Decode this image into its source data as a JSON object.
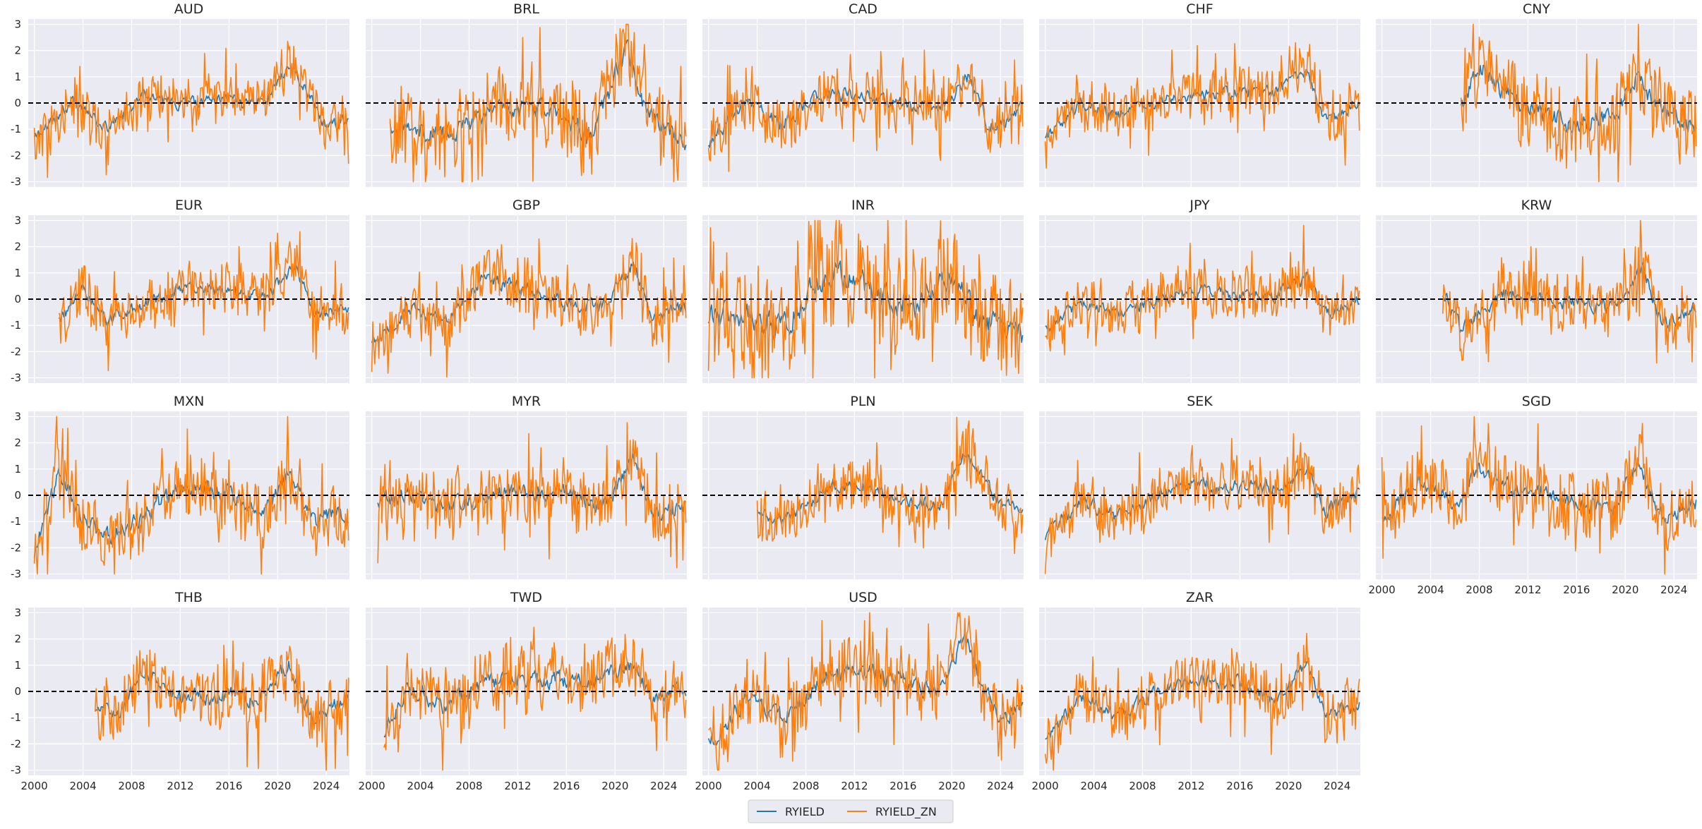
{
  "chart_data": {
    "type": "line",
    "grid": true,
    "layout": "4x5 facets",
    "xlim": [
      1999.5,
      2025.9
    ],
    "ylim": [
      -3.2,
      3.2
    ],
    "x_ticks": [
      2000,
      2004,
      2008,
      2012,
      2016,
      2020,
      2024
    ],
    "x_tick_labels": [
      "2000",
      "2004",
      "2008",
      "2012",
      "2016",
      "2020",
      "2024"
    ],
    "y_ticks": [
      -3,
      -2,
      -1,
      0,
      1,
      2,
      3
    ],
    "y_tick_labels": [
      "-3",
      "-2",
      "-1",
      "0",
      "1",
      "2",
      "3"
    ],
    "reference_line": {
      "y": 0,
      "style": "dashed",
      "color": "#000000"
    },
    "legend": {
      "position": "bottom-center",
      "entries": [
        {
          "name": "RYIELD",
          "color": "#1f77b4"
        },
        {
          "name": "RYIELD_ZN",
          "color": "#ff7f0e"
        }
      ]
    },
    "x_step_years": 0.0833,
    "panels": [
      {
        "title": "AUD",
        "start": 2000.0,
        "volatility": 0.75,
        "trend_x": [
          2000,
          2003,
          2006,
          2009,
          2012,
          2016,
          2019,
          2021,
          2022.5,
          2024,
          2025.8
        ],
        "trend_y": [
          -1.4,
          0.0,
          -0.9,
          0.2,
          0.0,
          0.1,
          0.0,
          1.6,
          0.3,
          -1.0,
          -0.5
        ]
      },
      {
        "title": "BRL",
        "start": 2001.5,
        "volatility": 1.25,
        "trend_x": [
          2001.5,
          2003,
          2006,
          2009,
          2012,
          2015,
          2018,
          2021,
          2022.5,
          2024,
          2025.8
        ],
        "trend_y": [
          -1.0,
          -0.7,
          -1.2,
          -0.6,
          -0.2,
          -0.4,
          -1.2,
          2.0,
          -0.3,
          -1.0,
          -1.4
        ]
      },
      {
        "title": "CAD",
        "start": 2000.0,
        "volatility": 0.85,
        "trend_x": [
          2000,
          2003,
          2006,
          2009,
          2012,
          2016,
          2019,
          2021.5,
          2023,
          2024.5,
          2025.8
        ],
        "trend_y": [
          -1.5,
          0.0,
          -0.8,
          0.3,
          0.3,
          0.0,
          -0.3,
          1.1,
          -0.9,
          -0.7,
          0.0
        ]
      },
      {
        "title": "CHF",
        "start": 2000.0,
        "volatility": 0.85,
        "trend_x": [
          2000,
          2003,
          2006,
          2009,
          2012,
          2016,
          2019,
          2021.5,
          2023,
          2024.5,
          2025.8
        ],
        "trend_y": [
          -1.3,
          0.0,
          -0.5,
          0.1,
          0.2,
          0.4,
          0.4,
          1.3,
          -0.6,
          -0.4,
          0.1
        ]
      },
      {
        "title": "CNY",
        "start": 2006.5,
        "volatility": 1.25,
        "trend_x": [
          2006.5,
          2008,
          2010,
          2013,
          2016,
          2019,
          2021,
          2023,
          2025.8
        ],
        "trend_y": [
          0.0,
          1.5,
          0.3,
          -0.3,
          -0.9,
          -0.6,
          1.0,
          -0.4,
          -0.8
        ]
      },
      {
        "title": "EUR",
        "start": 2002.0,
        "volatility": 0.8,
        "trend_x": [
          2002,
          2004,
          2006,
          2009,
          2012,
          2016,
          2019,
          2021.5,
          2023,
          2025.8
        ],
        "trend_y": [
          -0.9,
          0.3,
          -0.8,
          -0.2,
          0.4,
          0.3,
          0.1,
          1.3,
          -0.6,
          -0.2
        ]
      },
      {
        "title": "GBP",
        "start": 2000.0,
        "volatility": 0.85,
        "trend_x": [
          2000,
          2003,
          2006,
          2009,
          2012,
          2016,
          2019,
          2021.5,
          2023,
          2025.8
        ],
        "trend_y": [
          -1.8,
          -0.3,
          -0.8,
          0.7,
          0.5,
          -0.1,
          -0.3,
          1.3,
          -0.8,
          -0.3
        ]
      },
      {
        "title": "INR",
        "start": 2000.0,
        "volatility": 1.7,
        "trend_x": [
          2000,
          2003,
          2006,
          2009,
          2011,
          2014,
          2017,
          2020,
          2022,
          2024,
          2025.8
        ],
        "trend_y": [
          -0.8,
          -0.6,
          -1.0,
          0.6,
          1.0,
          0.0,
          -0.3,
          1.0,
          -0.8,
          -0.9,
          -1.2
        ]
      },
      {
        "title": "JPY",
        "start": 2000.0,
        "volatility": 0.8,
        "trend_x": [
          2000,
          2003,
          2006,
          2009,
          2012,
          2016,
          2019,
          2021.5,
          2023,
          2025.8
        ],
        "trend_y": [
          -1.2,
          -0.2,
          -0.5,
          0.0,
          0.3,
          0.2,
          0.1,
          0.9,
          -0.6,
          0.0
        ]
      },
      {
        "title": "KRW",
        "start": 2005.0,
        "volatility": 0.9,
        "trend_x": [
          2005,
          2006.5,
          2008,
          2010,
          2013,
          2016,
          2019,
          2021.5,
          2023,
          2025.8
        ],
        "trend_y": [
          0.3,
          -1.2,
          -0.5,
          0.2,
          0.1,
          -0.2,
          -0.3,
          1.2,
          -0.9,
          -0.4
        ]
      },
      {
        "title": "MXN",
        "start": 2000.0,
        "volatility": 1.1,
        "trend_x": [
          2000,
          2002,
          2004,
          2006,
          2009,
          2012,
          2016,
          2019,
          2021,
          2023,
          2025.8
        ],
        "trend_y": [
          -2.2,
          0.8,
          -0.8,
          -1.6,
          -0.7,
          0.3,
          0.0,
          -0.5,
          1.0,
          -1.0,
          -0.6
        ]
      },
      {
        "title": "MYR",
        "start": 2000.5,
        "volatility": 1.0,
        "trend_x": [
          2000.5,
          2003,
          2006,
          2009,
          2012,
          2016,
          2019,
          2021.5,
          2023,
          2025.8
        ],
        "trend_y": [
          -0.2,
          0.0,
          -0.5,
          0.0,
          0.2,
          0.1,
          -0.5,
          1.3,
          -0.6,
          -0.5
        ]
      },
      {
        "title": "PLN",
        "start": 2004.0,
        "volatility": 0.8,
        "trend_x": [
          2004,
          2006,
          2008,
          2010,
          2013,
          2016,
          2019,
          2021,
          2022.5,
          2024,
          2025.8
        ],
        "trend_y": [
          -0.6,
          -0.9,
          -0.4,
          0.4,
          0.3,
          -0.2,
          -0.4,
          1.5,
          0.8,
          -0.3,
          -0.5
        ]
      },
      {
        "title": "SEK",
        "start": 2000.0,
        "volatility": 0.85,
        "trend_x": [
          2000,
          2003,
          2006,
          2009,
          2012,
          2016,
          2019,
          2021.5,
          2023,
          2025.8
        ],
        "trend_y": [
          -1.5,
          -0.2,
          -0.8,
          0.0,
          0.4,
          0.3,
          0.3,
          1.1,
          -0.7,
          0.2
        ]
      },
      {
        "title": "SGD",
        "start": 2000.0,
        "volatility": 1.05,
        "trend_x": [
          2000,
          2003,
          2006,
          2008,
          2010,
          2013,
          2016,
          2019,
          2021,
          2023,
          2025.8
        ],
        "trend_y": [
          -0.9,
          0.5,
          -0.3,
          1.0,
          0.3,
          0.2,
          -0.4,
          -0.5,
          1.2,
          -0.8,
          -0.2
        ]
      },
      {
        "title": "THB",
        "start": 2005.0,
        "volatility": 1.0,
        "trend_x": [
          2005,
          2007,
          2009,
          2012,
          2015,
          2018,
          2021,
          2023,
          2025.8
        ],
        "trend_y": [
          -0.5,
          -0.9,
          0.8,
          -0.2,
          -0.2,
          -0.3,
          1.0,
          -1.2,
          -0.2
        ]
      },
      {
        "title": "TWD",
        "start": 2001.0,
        "volatility": 1.0,
        "trend_x": [
          2001,
          2003,
          2006,
          2009,
          2012,
          2016,
          2019,
          2021.5,
          2023,
          2025.8
        ],
        "trend_y": [
          -1.5,
          0.2,
          -0.6,
          0.3,
          0.5,
          0.4,
          0.5,
          1.0,
          -0.4,
          0.2
        ]
      },
      {
        "title": "USD",
        "start": 2000.0,
        "volatility": 1.05,
        "trend_x": [
          2000,
          2003,
          2006,
          2009,
          2012,
          2016,
          2019,
          2021,
          2022.5,
          2024,
          2025.8
        ],
        "trend_y": [
          -2.0,
          -0.3,
          -1.0,
          0.3,
          0.8,
          0.4,
          0.0,
          2.1,
          0.3,
          -1.2,
          -0.3
        ]
      },
      {
        "title": "ZAR",
        "start": 2000.0,
        "volatility": 0.9,
        "trend_x": [
          2000,
          2003,
          2006,
          2009,
          2012,
          2016,
          2019,
          2021.5,
          2023,
          2025.8
        ],
        "trend_y": [
          -1.8,
          -0.2,
          -0.9,
          -0.1,
          0.4,
          0.3,
          -0.3,
          1.0,
          -0.8,
          -0.6
        ]
      }
    ]
  }
}
